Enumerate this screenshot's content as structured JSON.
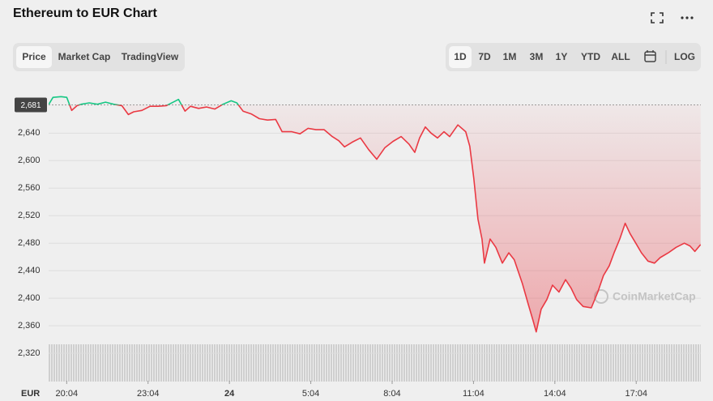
{
  "header": {
    "title": "Ethereum to EUR Chart"
  },
  "tabs": [
    "Price",
    "Market Cap",
    "TradingView"
  ],
  "ranges": [
    "1D",
    "7D",
    "1M",
    "3M",
    "1Y",
    "YTD",
    "ALL"
  ],
  "log_button": "LOG",
  "watermark": "CoinMarketCap",
  "chart_data": {
    "type": "line",
    "currency": "EUR",
    "x": [
      19.41,
      19.56,
      19.86,
      20.07,
      20.25,
      20.45,
      20.6,
      20.9,
      21.2,
      21.5,
      21.8,
      22.1,
      22.34,
      22.54,
      22.84,
      23.14,
      23.44,
      23.74,
      24.04,
      24.19,
      24.43,
      24.63,
      24.93,
      25.23,
      25.53,
      25.83,
      26.13,
      26.34,
      26.57,
      26.87,
      27.17,
      27.47,
      27.77,
      28.01,
      28.37,
      28.67,
      28.97,
      29.26,
      29.56,
      29.86,
      30.1,
      30.31,
      30.6,
      30.9,
      31.2,
      31.5,
      31.8,
      32.1,
      32.4,
      32.69,
      32.9,
      33.08,
      33.29,
      33.5,
      33.74,
      33.98,
      34.19,
      34.49,
      34.78,
      34.93,
      35.08,
      35.23,
      35.38,
      35.47,
      35.68,
      35.89,
      36.13,
      36.37,
      36.57,
      36.87,
      37.08,
      37.26,
      37.38,
      37.56,
      37.77,
      37.98,
      38.22,
      38.46,
      38.66,
      38.87,
      39.11,
      39.41,
      39.65,
      39.86,
      40.07,
      40.25,
      40.46,
      40.66,
      40.84,
      41.05,
      41.26,
      41.5,
      41.74,
      41.95,
      42.25,
      42.54,
      42.84,
      43.05,
      43.23,
      43.44
    ],
    "values": [
      2682,
      2692,
      2693,
      2692,
      2673,
      2680,
      2682,
      2684,
      2682,
      2685,
      2682,
      2680,
      2667,
      2671,
      2673,
      2679,
      2679,
      2680,
      2686,
      2689,
      2672,
      2679,
      2676,
      2678,
      2675,
      2682,
      2687,
      2684,
      2672,
      2668,
      2661,
      2659,
      2660,
      2642,
      2642,
      2639,
      2647,
      2645,
      2645,
      2635,
      2629,
      2620,
      2627,
      2633,
      2616,
      2602,
      2619,
      2628,
      2635,
      2624,
      2612,
      2633,
      2649,
      2640,
      2633,
      2642,
      2635,
      2652,
      2642,
      2621,
      2574,
      2515,
      2486,
      2451,
      2486,
      2474,
      2451,
      2466,
      2456,
      2421,
      2392,
      2368,
      2351,
      2384,
      2398,
      2419,
      2409,
      2427,
      2415,
      2398,
      2388,
      2386,
      2409,
      2433,
      2447,
      2466,
      2486,
      2509,
      2494,
      2480,
      2466,
      2454,
      2451,
      2459,
      2466,
      2474,
      2480,
      2476,
      2468,
      2478
    ],
    "baseline": {
      "value": 2681,
      "label": "2,681"
    },
    "up_color": "#16c784",
    "down_color": "#ea3943",
    "xlim": [
      19.4,
      43.45
    ],
    "xticks": [
      {
        "value": 20.067,
        "label": "20:04"
      },
      {
        "value": 23.067,
        "label": "23:04"
      },
      {
        "value": 26.067,
        "label": "24"
      },
      {
        "value": 29.067,
        "label": "5:04"
      },
      {
        "value": 32.067,
        "label": "8:04"
      },
      {
        "value": 35.067,
        "label": "11:04"
      },
      {
        "value": 38.067,
        "label": "14:04"
      },
      {
        "value": 41.067,
        "label": "17:04"
      }
    ],
    "ylim": [
      2280,
      2704
    ],
    "yticks": [
      {
        "value": 2320,
        "label": "2,320"
      },
      {
        "value": 2360,
        "label": "2,360"
      },
      {
        "value": 2400,
        "label": "2,400"
      },
      {
        "value": 2440,
        "label": "2,440"
      },
      {
        "value": 2480,
        "label": "2,480"
      },
      {
        "value": 2520,
        "label": "2,520"
      },
      {
        "value": 2560,
        "label": "2,560"
      },
      {
        "value": 2600,
        "label": "2,600"
      },
      {
        "value": 2640,
        "label": "2,640"
      }
    ],
    "grid": true
  }
}
